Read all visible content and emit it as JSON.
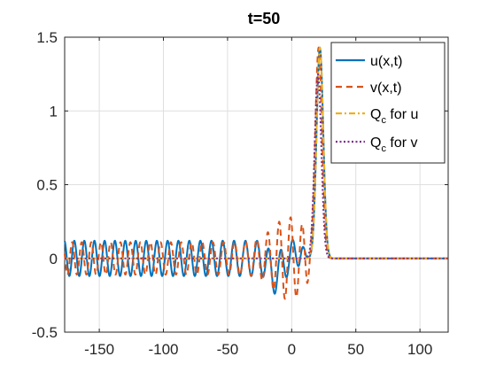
{
  "chart_data": {
    "type": "line",
    "title": "t=50",
    "xlabel": "",
    "ylabel": "",
    "xlim": [
      -177,
      122
    ],
    "ylim": [
      -0.5,
      1.5
    ],
    "xticks": [
      -150,
      -100,
      -50,
      0,
      50,
      100
    ],
    "yticks": [
      -0.5,
      0,
      0.5,
      1,
      1.5
    ],
    "xtick_labels": [
      "-150",
      "-100",
      "-50",
      "0",
      "50",
      "100"
    ],
    "ytick_labels": [
      "-0.5",
      "0",
      "0.5",
      "1",
      "1.5"
    ],
    "grid": true,
    "legend_position": "top-right",
    "series": [
      {
        "name": "u(x,t)",
        "style": "solid",
        "color": "#0072BD",
        "description": "oscillatory tail left of soliton, peak ~1.43 at x~22",
        "soliton_center": 22,
        "soliton_peak": 1.43,
        "soliton_width": 2.6
      },
      {
        "name": "v(x,t)",
        "style": "dashed",
        "color": "#D95319",
        "soliton_center": 21,
        "soliton_peak": 1.43,
        "soliton_width": 2.6
      },
      {
        "name": "Q_c for u",
        "legend_main": "Q",
        "legend_sub": "c",
        "legend_rest": " for u",
        "style": "dashdot",
        "color": "#EDB120",
        "soliton_center": 22,
        "soliton_peak": 1.43,
        "soliton_width": 2.6
      },
      {
        "name": "Q_c for v",
        "legend_main": "Q",
        "legend_sub": "c",
        "legend_rest": " for v",
        "style": "dotted",
        "color": "#7E2F8E",
        "soliton_center": 20.5,
        "soliton_peak": 1.25,
        "soliton_width": 2.6
      }
    ]
  }
}
